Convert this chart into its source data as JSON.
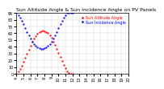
{
  "title": "Sun Altitude Angle & Sun Incidence Angle on PV Panels",
  "legend_entries": [
    "Sun Altitude Angle",
    "Sun Incidence Angle"
  ],
  "legend_colors": [
    "#ff0000",
    "#0000ff"
  ],
  "x_labels": [
    "4",
    "4:30",
    "5",
    "5:30",
    "6",
    "6:30",
    "7",
    "7:30",
    "8",
    "8:30",
    "9",
    "9:30",
    "10",
    "10:30",
    "11",
    "11:30",
    "12",
    "12:30",
    "13",
    "13:30",
    "14",
    "14:30",
    "15",
    "15:30",
    "16",
    "16:30",
    "17",
    "17:30",
    "18",
    "18:30",
    "19",
    "19:30",
    "20"
  ],
  "altitude_x": [
    0,
    0.5,
    1,
    1.5,
    2,
    2.5,
    3,
    3.5,
    4,
    4.5,
    5,
    5.5,
    6,
    6.5,
    7,
    7.5,
    8,
    8.5,
    9,
    9.5,
    10,
    10.5,
    11,
    11.5,
    12,
    12.5,
    13,
    13.5,
    14,
    14.5,
    15,
    15.5,
    16
  ],
  "altitude_y": [
    0,
    3,
    7,
    12,
    18,
    24,
    30,
    36,
    42,
    47,
    52,
    56,
    59,
    62,
    63,
    64,
    63,
    62,
    60,
    57,
    53,
    48,
    43,
    37,
    31,
    25,
    19,
    13,
    8,
    4,
    1,
    0,
    0
  ],
  "incidence_x": [
    0,
    0.5,
    1,
    1.5,
    2,
    2.5,
    3,
    3.5,
    4,
    4.5,
    5,
    5.5,
    6,
    6.5,
    7,
    7.5,
    8,
    8.5,
    9,
    9.5,
    10,
    10.5,
    11,
    11.5,
    12,
    12.5,
    13,
    13.5,
    14,
    14.5,
    15,
    15.5,
    16
  ],
  "incidence_y": [
    90,
    87,
    83,
    78,
    73,
    67,
    62,
    57,
    52,
    48,
    44,
    41,
    39,
    38,
    37,
    37,
    38,
    39,
    41,
    44,
    48,
    52,
    57,
    62,
    67,
    73,
    78,
    83,
    87,
    90,
    90,
    90,
    90
  ],
  "ylim": [
    0,
    90
  ],
  "xlim": [
    0,
    16
  ],
  "y_ticks": [
    0,
    10,
    20,
    30,
    40,
    50,
    60,
    70,
    80,
    90
  ],
  "background_color": "#ffffff",
  "grid_color": "#cccccc",
  "altitude_color": "#ff0000",
  "incidence_color": "#0000ff",
  "title_fontsize": 4.5,
  "tick_fontsize": 3.5,
  "legend_fontsize": 3.5,
  "marker_size": 1.2
}
